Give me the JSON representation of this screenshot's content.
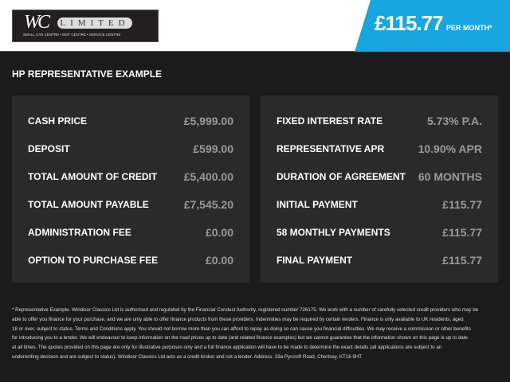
{
  "header": {
    "logo": {
      "initials": "WC",
      "word": "LIMITED",
      "tagline": "SMALL CAR CENTRE • MOT CENTRE • SERVICE CENTRE"
    },
    "monthly_price": "£115.77",
    "per_month_label": "PER MONTH*",
    "accent_color": "#18a6e0"
  },
  "section_title": "HP REPRESENTATIVE EXAMPLE",
  "left_panel": [
    {
      "label": "CASH PRICE",
      "value": "£5,999.00"
    },
    {
      "label": "DEPOSIT",
      "value": "£599.00"
    },
    {
      "label": "TOTAL AMOUNT OF CREDIT",
      "value": "£5,400.00"
    },
    {
      "label": "TOTAL AMOUNT PAYABLE",
      "value": "£7,545.20"
    },
    {
      "label": "ADMINISTRATION FEE",
      "value": "£0.00"
    },
    {
      "label": "OPTION TO PURCHASE FEE",
      "value": "£0.00"
    }
  ],
  "right_panel": [
    {
      "label": "FIXED INTEREST RATE",
      "value": "5.73% P.A."
    },
    {
      "label": "REPRESENTATIVE APR",
      "value": "10.90% APR"
    },
    {
      "label": "DURATION OF AGREEMENT",
      "value": "60 MONTHS"
    },
    {
      "label": "INITIAL PAYMENT",
      "value": "£115.77"
    },
    {
      "label": "58 MONTHLY PAYMENTS",
      "value": "£115.77"
    },
    {
      "label": "FINAL PAYMENT",
      "value": "£115.77"
    }
  ],
  "footnote": [
    "* Representative Example. Windisor Classics Ltd is authorised and regulated by the Financial Conduct Authority, registered number 726175. We work with a number of carefully selected credit providers who may be",
    "able to offer you finance for your purchase, and we are only able to offer finance products from these providers. Indemnities may be required by certain lenders. Finance is only available to UK residents, aged",
    "18 or over, subject to status. Terms and Conditions apply. You should not borrow more than you can afford to repay as doing so can cause you financial difficulties. We may receive a commission or other benefits",
    "for introducing you to a lender. We will endeavour to keep information on the road prices up to date (and related finance examples) but we cannot guarantee that the information shown on this page is up to date",
    "at all times. The quotes provided on this page are only for illustrative purposes only and a full finance application will have to be made to determine the exact details (all applications are subject to an",
    "underwriting decision and are subject to status). Windisor Classics Ltd acts as a credit broker and not a lender. Address: 33a Pyrcroft Road, Chertsey, KT16 9HT"
  ]
}
